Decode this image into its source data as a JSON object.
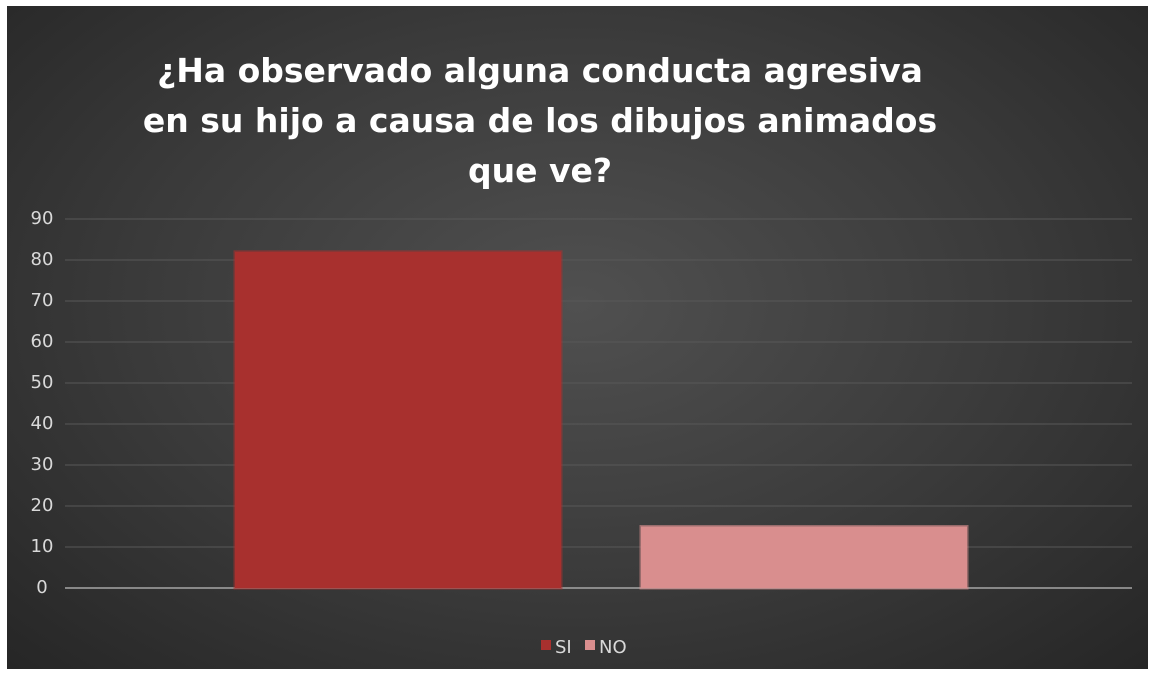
{
  "chart_data": {
    "type": "bar",
    "title": "¿Ha observado alguna conducta agresiva en su hijo a causa de los dibujos animados que ve?",
    "categories": [
      "SI",
      "NO"
    ],
    "values": [
      82,
      15
    ],
    "colors": [
      "#a8302e",
      "#d98e8e"
    ],
    "ylim": [
      0,
      90
    ],
    "yticks": [
      0,
      10,
      20,
      30,
      40,
      50,
      60,
      70,
      80,
      90
    ],
    "grid": true,
    "legend": "bottom"
  }
}
